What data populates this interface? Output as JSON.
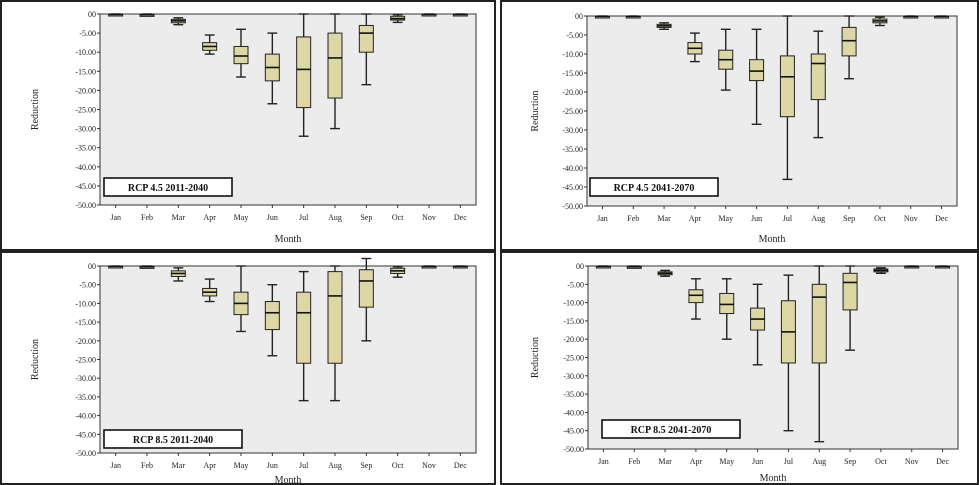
{
  "chart_data": [
    {
      "type": "box",
      "title": "RCP 4.5 2011-2040",
      "xlabel": "Month",
      "ylabel": "Reduction",
      "ylim": [
        -50,
        0
      ],
      "yticks": [
        "00",
        "-5.00",
        "-10.00",
        "-15.00",
        "-20.00",
        "-25.00",
        "-30.00",
        "-35.00",
        "-40.00",
        "-45.00",
        "-50.00"
      ],
      "categories": [
        "Jan",
        "Feb",
        "Mar",
        "Apr",
        "May",
        "Jun",
        "Jul",
        "Aug",
        "Sep",
        "Oct",
        "Nov",
        "Dec"
      ],
      "boxes": [
        {
          "min": -0.2,
          "q1": -0.2,
          "median": -0.1,
          "q3": 0,
          "max": 0
        },
        {
          "min": -0.4,
          "q1": -0.3,
          "median": -0.2,
          "q3": -0.1,
          "max": 0
        },
        {
          "min": -2.8,
          "q1": -2.3,
          "median": -1.8,
          "q3": -1.4,
          "max": -1.0
        },
        {
          "min": -10.5,
          "q1": -9.5,
          "median": -8.5,
          "q3": -7.5,
          "max": -5.5
        },
        {
          "min": -16.5,
          "q1": -13,
          "median": -11,
          "q3": -8.5,
          "max": -4
        },
        {
          "min": -23.5,
          "q1": -17.5,
          "median": -14,
          "q3": -10.5,
          "max": -5
        },
        {
          "min": -32,
          "q1": -24.5,
          "median": -14.5,
          "q3": -6,
          "max": 0
        },
        {
          "min": -30,
          "q1": -22,
          "median": -11.5,
          "q3": -5,
          "max": 0
        },
        {
          "min": -18.5,
          "q1": -10,
          "median": -5,
          "q3": -3,
          "max": 0
        },
        {
          "min": -2.2,
          "q1": -1.6,
          "median": -1.2,
          "q3": -0.6,
          "max": -0.2
        },
        {
          "min": -0.2,
          "q1": -0.2,
          "median": -0.1,
          "q3": 0,
          "max": 0
        },
        {
          "min": -0.2,
          "q1": -0.2,
          "median": -0.1,
          "q3": 0,
          "max": 0
        }
      ]
    },
    {
      "type": "box",
      "title": "RCP 4.5 2041-2070",
      "xlabel": "Month",
      "ylabel": "Reduction",
      "ylim": [
        -50,
        0
      ],
      "yticks": [
        "00",
        "-5.00",
        "-10.00",
        "-15.00",
        "-20.00",
        "-25.00",
        "-30.00",
        "-35.00",
        "-40.00",
        "-45.00",
        "-50.00"
      ],
      "categories": [
        "Jan",
        "Feb",
        "Mar",
        "Apr",
        "May",
        "Jun",
        "Jul",
        "Aug",
        "Sep",
        "Oct",
        "Nov",
        "Dec"
      ],
      "boxes": [
        {
          "min": -0.2,
          "q1": -0.2,
          "median": -0.1,
          "q3": 0,
          "max": 0
        },
        {
          "min": -0.2,
          "q1": -0.2,
          "median": -0.1,
          "q3": 0,
          "max": 0
        },
        {
          "min": -3.5,
          "q1": -3.0,
          "median": -2.6,
          "q3": -2.2,
          "max": -1.8
        },
        {
          "min": -12,
          "q1": -10,
          "median": -8.5,
          "q3": -7,
          "max": -4.5
        },
        {
          "min": -19.5,
          "q1": -14,
          "median": -11.5,
          "q3": -9,
          "max": -3.5
        },
        {
          "min": -28.5,
          "q1": -17,
          "median": -14.5,
          "q3": -11.5,
          "max": -3.5
        },
        {
          "min": -43,
          "q1": -26.5,
          "median": -16,
          "q3": -10.5,
          "max": 0
        },
        {
          "min": -32,
          "q1": -22,
          "median": -12.5,
          "q3": -10,
          "max": -4
        },
        {
          "min": -16.5,
          "q1": -10.5,
          "median": -6.5,
          "q3": -3,
          "max": 0
        },
        {
          "min": -2.5,
          "q1": -1.8,
          "median": -1.3,
          "q3": -0.8,
          "max": -0.3
        },
        {
          "min": -0.2,
          "q1": -0.2,
          "median": -0.1,
          "q3": 0,
          "max": 0
        },
        {
          "min": -0.2,
          "q1": -0.2,
          "median": -0.1,
          "q3": 0,
          "max": 0
        }
      ]
    },
    {
      "type": "box",
      "title": "RCP 8.5 2011-2040",
      "xlabel": "Month",
      "ylabel": "Reduction",
      "ylim": [
        -50,
        0
      ],
      "yticks": [
        "00",
        "-5.00",
        "-10.00",
        "-15.00",
        "-20.00",
        "-25.00",
        "-30.00",
        "-35.00",
        "-40.00",
        "-45.00",
        "-50.00"
      ],
      "categories": [
        "Jan",
        "Feb",
        "Mar",
        "Apr",
        "May",
        "Jun",
        "Jul",
        "Aug",
        "Sep",
        "Oct",
        "Nov",
        "Dec"
      ],
      "boxes": [
        {
          "min": -0.2,
          "q1": -0.2,
          "median": -0.1,
          "q3": 0,
          "max": 0
        },
        {
          "min": -0.4,
          "q1": -0.3,
          "median": -0.2,
          "q3": -0.1,
          "max": 0
        },
        {
          "min": -4,
          "q1": -2.8,
          "median": -2,
          "q3": -1.3,
          "max": -0.5
        },
        {
          "min": -9.5,
          "q1": -8,
          "median": -7,
          "q3": -6,
          "max": -3.5
        },
        {
          "min": -17.5,
          "q1": -13,
          "median": -10,
          "q3": -7,
          "max": 0
        },
        {
          "min": -24,
          "q1": -17,
          "median": -12.5,
          "q3": -9.5,
          "max": -5
        },
        {
          "min": -36,
          "q1": -26,
          "median": -12.5,
          "q3": -7,
          "max": -1.5
        },
        {
          "min": -36,
          "q1": -26,
          "median": -8,
          "q3": -1.5,
          "max": 0
        },
        {
          "min": -20,
          "q1": -11,
          "median": -4,
          "q3": -1,
          "max": 2
        },
        {
          "min": -3,
          "q1": -2,
          "median": -1.3,
          "q3": -0.6,
          "max": -0.2
        },
        {
          "min": -0.2,
          "q1": -0.2,
          "median": -0.1,
          "q3": 0,
          "max": 0
        },
        {
          "min": -0.2,
          "q1": -0.2,
          "median": -0.1,
          "q3": 0,
          "max": 0
        }
      ]
    },
    {
      "type": "box",
      "title": "RCP 8.5 2041-2070",
      "xlabel": "Month",
      "ylabel": "Reduction",
      "ylim": [
        -50,
        0
      ],
      "yticks": [
        "00",
        "-5.00",
        "-10.00",
        "-15.00",
        "-20.00",
        "-25.00",
        "-30.00",
        "-35.00",
        "-40.00",
        "-45.00",
        "-50.00"
      ],
      "categories": [
        "Jan",
        "Feb",
        "Mar",
        "Apr",
        "May",
        "Jun",
        "Jul",
        "Aug",
        "Sep",
        "Oct",
        "Nov",
        "Dec"
      ],
      "boxes": [
        {
          "min": -0.2,
          "q1": -0.2,
          "median": -0.1,
          "q3": 0,
          "max": 0
        },
        {
          "min": -0.4,
          "q1": -0.3,
          "median": -0.2,
          "q3": -0.1,
          "max": 0
        },
        {
          "min": -2.8,
          "q1": -2.4,
          "median": -2,
          "q3": -1.6,
          "max": -1.2
        },
        {
          "min": -14.5,
          "q1": -10,
          "median": -8,
          "q3": -6.5,
          "max": -3.5
        },
        {
          "min": -20,
          "q1": -13,
          "median": -10.5,
          "q3": -7.5,
          "max": -3.5
        },
        {
          "min": -27,
          "q1": -17.5,
          "median": -14.5,
          "q3": -11.5,
          "max": -5
        },
        {
          "min": -45,
          "q1": -26.5,
          "median": -18,
          "q3": -9.5,
          "max": -2.5
        },
        {
          "min": -48,
          "q1": -26.5,
          "median": -8.5,
          "q3": -5,
          "max": 0
        },
        {
          "min": -23,
          "q1": -12,
          "median": -4.5,
          "q3": -2,
          "max": 0
        },
        {
          "min": -2,
          "q1": -1.6,
          "median": -1.2,
          "q3": -0.8,
          "max": -0.5
        },
        {
          "min": -0.2,
          "q1": -0.2,
          "median": -0.1,
          "q3": 0,
          "max": 0
        },
        {
          "min": -0.2,
          "q1": -0.2,
          "median": -0.1,
          "q3": 0,
          "max": 0
        }
      ]
    }
  ]
}
